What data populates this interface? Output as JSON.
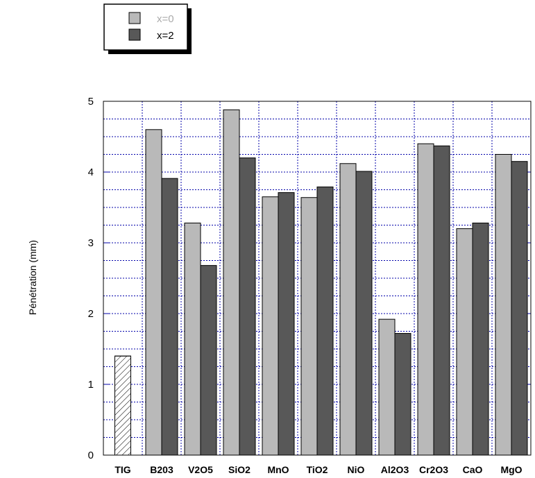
{
  "chart_data": {
    "type": "bar",
    "ylabel": "Pénétration  (mm)",
    "ylim": [
      0,
      5
    ],
    "yticks": [
      "0",
      "1",
      "2",
      "3",
      "4",
      "5"
    ],
    "grid": true,
    "legend_position": "top-left",
    "categories": [
      "TIG",
      "B203",
      "V2O5",
      "SiO2",
      "MnO",
      "TiO2",
      "NiO",
      "Al2O3",
      "Cr2O3",
      "CaO",
      "MgO"
    ],
    "reference": {
      "category": "TIG",
      "value": 1.4,
      "pattern": "hatched"
    },
    "series": [
      {
        "name": "x=0",
        "color": "#b9b9b9",
        "values": [
          null,
          4.6,
          3.28,
          4.88,
          3.65,
          3.64,
          4.12,
          1.92,
          4.4,
          3.2,
          4.25
        ]
      },
      {
        "name": "x=2",
        "color": "#585858",
        "values": [
          null,
          3.91,
          2.68,
          4.2,
          3.71,
          3.79,
          4.01,
          1.72,
          4.37,
          3.28,
          4.15
        ]
      }
    ],
    "colors": {
      "grid": "#0000aa",
      "frame": "#000000",
      "hatch": "#000000"
    }
  }
}
